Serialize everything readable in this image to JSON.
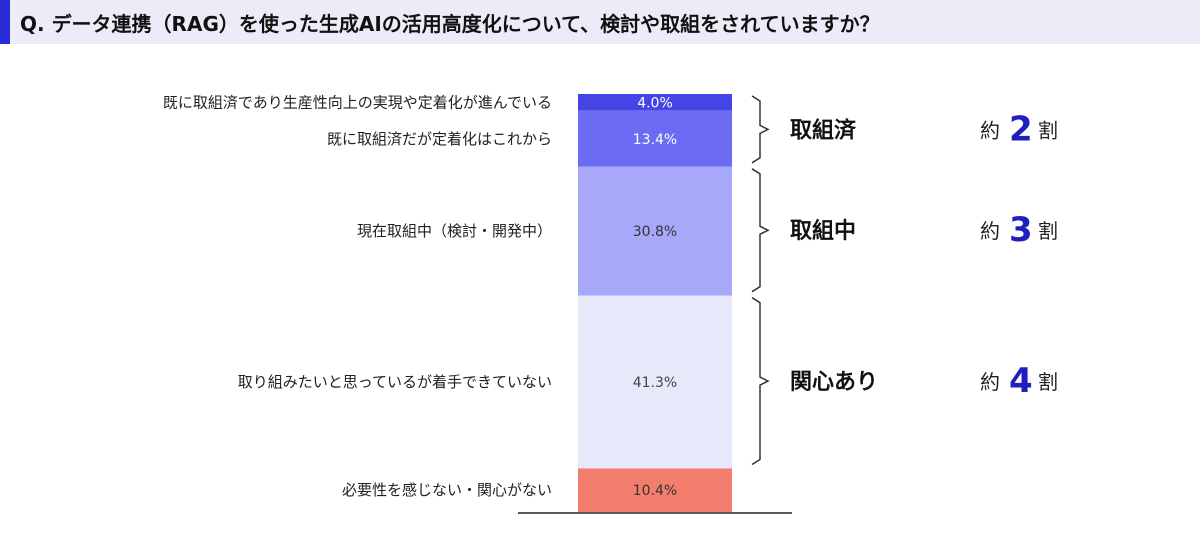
{
  "title": "Q. データ連携（RAG）を使った生成AIの活用高度化について、検討や取組をされていますか？",
  "colors": {
    "title_accent": "#2a2ad6",
    "title_bg": "#ececf8",
    "highlight_number": "#1f1fc0"
  },
  "chart_data": {
    "type": "bar",
    "stacked": true,
    "orientation": "vertical-single-stack",
    "categories": [
      "既に取組済であり生産性向上の実現や定着化が進んでいる",
      "既に取組済だが定着化はこれから",
      "現在取組中（検討・開発中）",
      "取り組みたいと思っているが着手できていない",
      "必要性を感じない・関心がない"
    ],
    "values": [
      4.0,
      13.4,
      30.8,
      41.3,
      10.4
    ],
    "value_labels": [
      "4.0%",
      "13.4%",
      "30.8%",
      "41.3%",
      "10.4%"
    ],
    "unit": "%",
    "segment_colors": [
      "#4545e6",
      "#6b6bf3",
      "#a8a8fb",
      "#e8e8fb",
      "#f47e6e"
    ],
    "value_label_colors": [
      "#ffffff",
      "#ffffff",
      "#333333",
      "#444444",
      "#333333"
    ],
    "groups": [
      {
        "label": "取組済",
        "prefix": "約",
        "number": "2",
        "suffix": "割",
        "from": 0,
        "to": 1
      },
      {
        "label": "取組中",
        "prefix": "約",
        "number": "3",
        "suffix": "割",
        "from": 2,
        "to": 2
      },
      {
        "label": "関心あり",
        "prefix": "約",
        "number": "4",
        "suffix": "割",
        "from": 3,
        "to": 3
      }
    ]
  }
}
